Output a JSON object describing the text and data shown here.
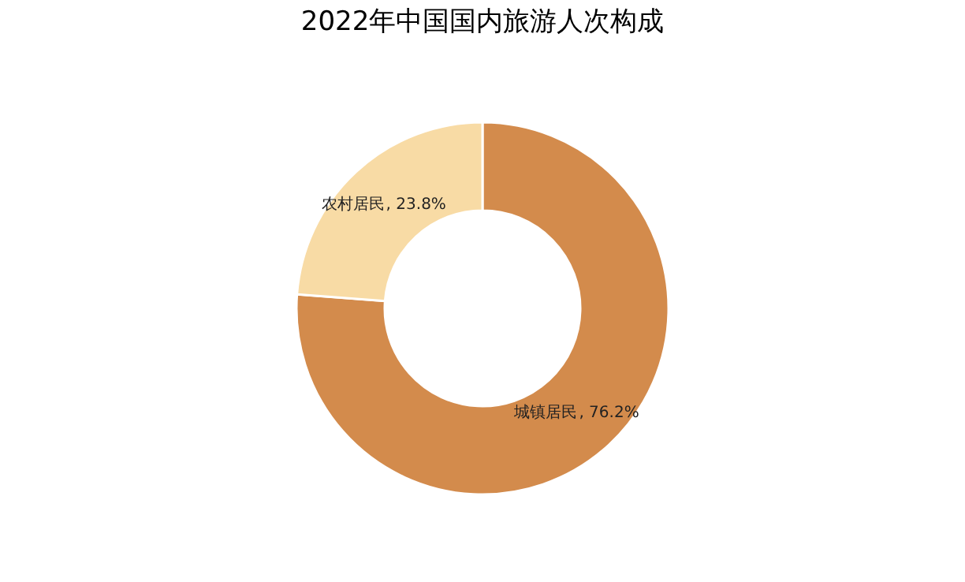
{
  "chart_data": {
    "type": "donut",
    "title": "2022年中国国内旅游人次构成",
    "categories": [
      "城镇居民",
      "农村居民"
    ],
    "values": [
      76.2,
      23.8
    ],
    "value_labels": [
      ", 76.2%",
      ", 23.8%"
    ],
    "colors": [
      "#d38b4c",
      "#f8dba5"
    ],
    "legend": false
  }
}
